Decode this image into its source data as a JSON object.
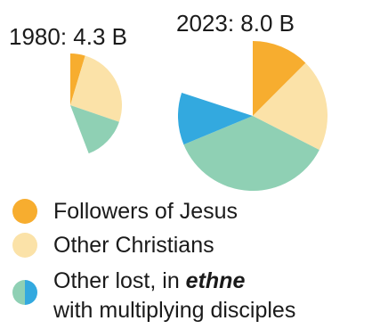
{
  "chart_data": {
    "type": "pie",
    "unit": "B",
    "colors": {
      "followers": "#f7ad2f",
      "other_christians": "#fbe2a8",
      "other_lost": "#8fd0b4",
      "multiplying": "#33a9df"
    },
    "pies": [
      {
        "title": "1980: 4.3 B",
        "total": 4.3,
        "slices": [
          {
            "series": "followers",
            "value": 0.2
          },
          {
            "series": "other_christians",
            "value": 1.1
          },
          {
            "series": "other_lost",
            "value": 0.6
          }
        ]
      },
      {
        "title": "2023: 8.0 B",
        "total": 8.0,
        "slices": [
          {
            "series": "followers",
            "value": 1.0
          },
          {
            "series": "other_christians",
            "value": 1.6
          },
          {
            "series": "other_lost",
            "value": 2.9
          },
          {
            "series": "multiplying",
            "value": 0.9
          }
        ]
      }
    ],
    "legend": {
      "followers": "Followers of Jesus",
      "other_christians": "Other Christians",
      "other_lost_prefix": "Other lost, in ",
      "other_lost_emph": "ethne",
      "other_lost_line2": "with multiplying disciples"
    }
  }
}
